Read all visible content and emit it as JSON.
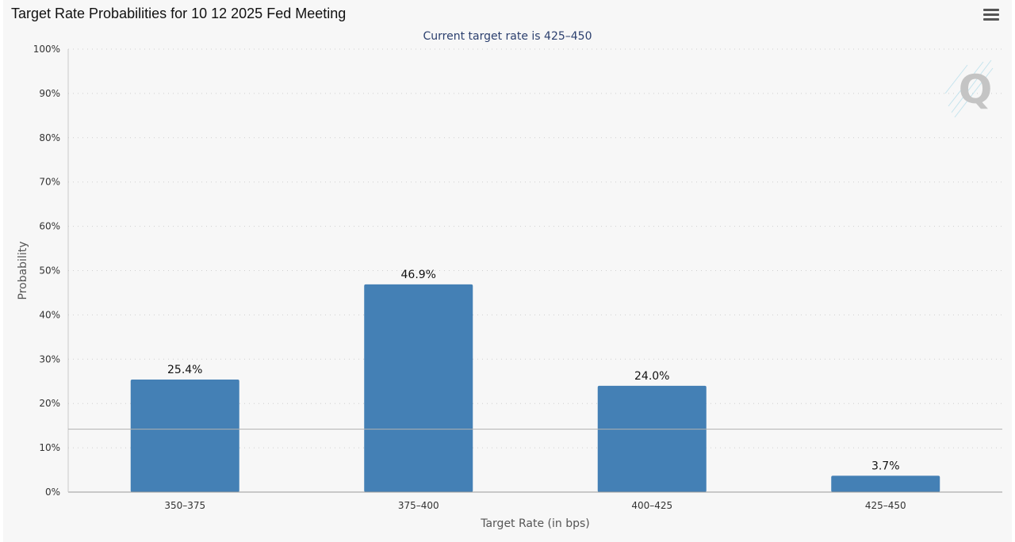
{
  "header": {
    "title": "Target Rate Probabilities for 10 12 2025 Fed Meeting",
    "menu_icon": "hamburger-menu-icon"
  },
  "colors": {
    "bar": "#4480b5",
    "subtitle": "#2b3f6e",
    "axis_text": "#333333",
    "grid": "#cfcfcf"
  },
  "watermark": {
    "letter": "Q"
  },
  "chart_data": {
    "type": "bar",
    "title": "Target Rate Probabilities for 10 12 2025 Fed Meeting",
    "subtitle": "Current target rate is 425–450",
    "xlabel": "Target Rate (in bps)",
    "ylabel": "Probability",
    "categories": [
      "350–375",
      "375–400",
      "400–425",
      "425–450"
    ],
    "values": [
      25.4,
      46.9,
      24.0,
      3.7
    ],
    "data_labels": [
      "25.4%",
      "46.9%",
      "24.0%",
      "3.7%"
    ],
    "ylim": [
      0,
      100
    ],
    "yticks": [
      0,
      10,
      20,
      30,
      40,
      50,
      60,
      70,
      80,
      90,
      100
    ],
    "ytick_labels": [
      "0%",
      "10%",
      "20%",
      "30%",
      "40%",
      "50%",
      "60%",
      "70%",
      "80%",
      "90%",
      "100%"
    ],
    "reference_line_value": 14.2,
    "grid": "dotted horizontal",
    "legend": "none"
  }
}
